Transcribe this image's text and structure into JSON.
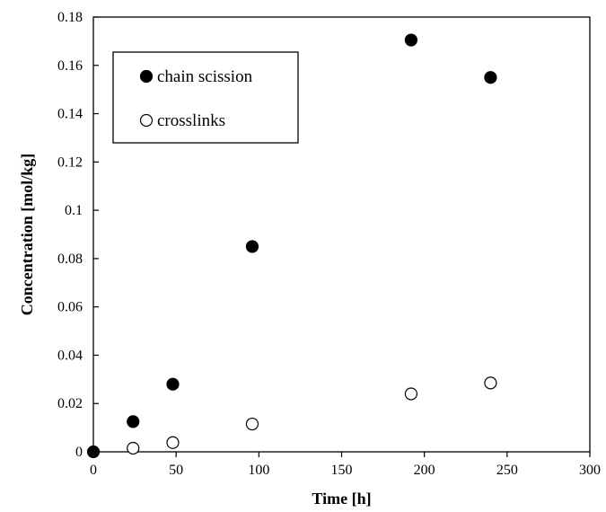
{
  "chart_data": {
    "type": "scatter",
    "title": "",
    "xlabel": "Time [h]",
    "ylabel": "Concentration  [mol/kg]",
    "xlim": [
      0,
      300
    ],
    "ylim": [
      0,
      0.18
    ],
    "xticks": [
      "0",
      "50",
      "100",
      "150",
      "200",
      "250",
      "300"
    ],
    "yticks": [
      "0",
      "0.02",
      "0.04",
      "0.06",
      "0.08",
      "0.1",
      "0.12",
      "0.14",
      "0.16",
      "0.18"
    ],
    "grid": false,
    "legend_position": "top-left",
    "series": [
      {
        "name": "chain scission",
        "marker": "filled-circle",
        "color": "#000000",
        "x": [
          0,
          24,
          48,
          96,
          192,
          240
        ],
        "y": [
          0,
          0.0125,
          0.028,
          0.085,
          0.1705,
          0.155
        ]
      },
      {
        "name": "crosslinks",
        "marker": "open-circle",
        "color": "#000000",
        "x": [
          24,
          48,
          96,
          192,
          240
        ],
        "y": [
          0.0015,
          0.0038,
          0.0115,
          0.024,
          0.0285
        ]
      }
    ]
  }
}
